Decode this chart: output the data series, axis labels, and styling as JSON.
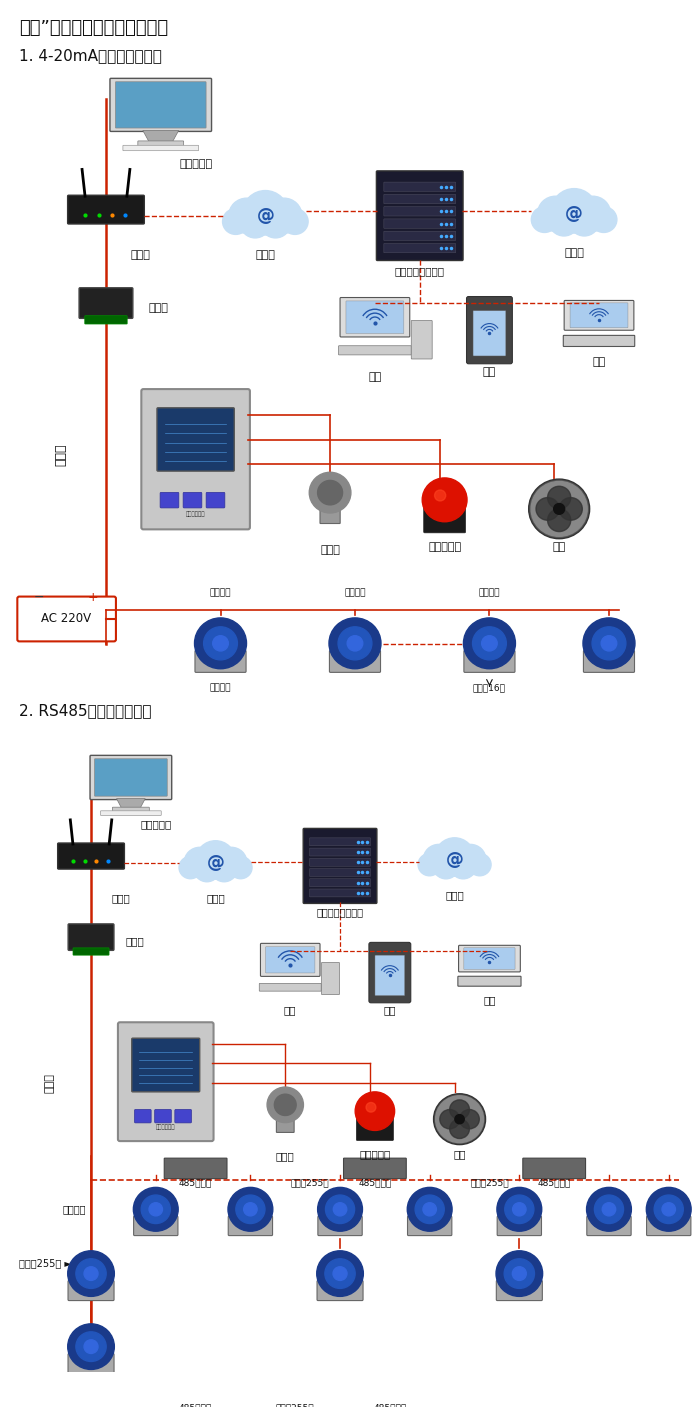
{
  "title1": "大众”系列带显示固定式检测仪",
  "subtitle1": "1. 4-20mA信号连接系统图",
  "subtitle2": "2. RS485信号连接系统图",
  "bg_color": "#ffffff",
  "text_color": "#222222",
  "RC": "#cc2200",
  "labels_s1": {
    "computer": "单机版电脑",
    "router": "路由器",
    "internet1": "互联网",
    "server": "安帮尔网络服务器",
    "internet2": "互联网",
    "converter": "转换器",
    "comm": "通讯线",
    "pc": "电脑",
    "phone": "手机",
    "terminal": "终端",
    "valve": "电磁阀",
    "alarm": "声光报警器",
    "fan": "风机",
    "ac": "AC 220V",
    "sig1": "信号输出",
    "sig2": "信号输出",
    "sig3": "信号输出",
    "conn16": "可连接16个"
  },
  "labels_s2": {
    "computer": "单机版电脑",
    "router": "路由器",
    "internet1": "互联网",
    "server": "安帮尔网络服务器",
    "internet2": "互联网",
    "converter": "转换器",
    "comm": "通讯线",
    "pc": "电脑",
    "phone": "手机",
    "terminal": "终端",
    "valve": "电磁阀",
    "alarm": "声光报警器",
    "fan": "风机",
    "relay": "485中继器",
    "conn255": "可连接255台",
    "sig_out": "信号输出"
  }
}
